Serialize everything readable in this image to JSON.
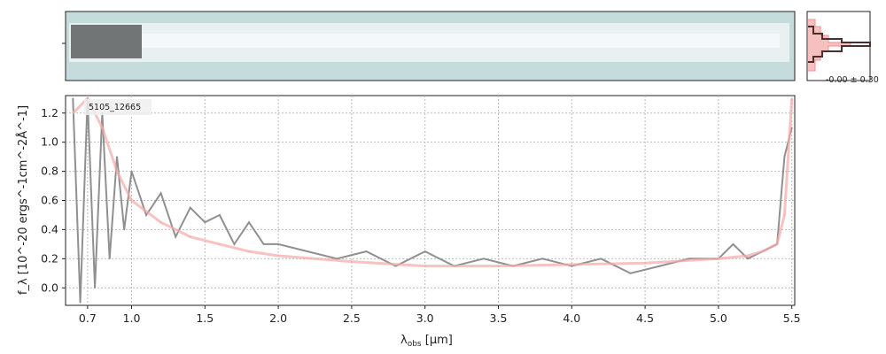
{
  "chart_data": {
    "type": "line",
    "object_id": "5105_12665",
    "xlabel_main": "λ",
    "xlabel_sub": "obs",
    "xlabel_unit": " [μm]",
    "ylabel_text": "f_λ [10^-20 ergs^-1cm^-2Å^-1]",
    "ylim": [
      -0.12,
      1.32
    ],
    "yticks": [
      "0.0",
      "0.2",
      "0.4",
      "0.6",
      "0.8",
      "1.0",
      "1.2"
    ],
    "xticks": [
      "0.7",
      "1.0",
      "1.5",
      "2.0",
      "2.5",
      "3.0",
      "3.5",
      "4.0",
      "4.5",
      "5.0",
      "5.5"
    ],
    "xlim": [
      0.55,
      5.52
    ],
    "grid": true,
    "series": [
      {
        "color": "#8a8a8a",
        "x": [
          0.6,
          0.65,
          0.7,
          0.75,
          0.8,
          0.85,
          0.9,
          0.95,
          1.0,
          1.1,
          1.2,
          1.3,
          1.4,
          1.5,
          1.6,
          1.7,
          1.8,
          1.9,
          2.0,
          2.2,
          2.4,
          2.6,
          2.8,
          3.0,
          3.2,
          3.4,
          3.6,
          3.8,
          4.0,
          4.2,
          4.4,
          4.6,
          4.8,
          5.0,
          5.1,
          5.2,
          5.3,
          5.4,
          5.45,
          5.5
        ],
        "y": [
          1.3,
          -0.1,
          1.3,
          0.0,
          1.2,
          0.2,
          0.9,
          0.4,
          0.8,
          0.5,
          0.65,
          0.35,
          0.55,
          0.45,
          0.5,
          0.3,
          0.45,
          0.3,
          0.3,
          0.25,
          0.2,
          0.25,
          0.15,
          0.25,
          0.15,
          0.2,
          0.15,
          0.2,
          0.15,
          0.2,
          0.1,
          0.15,
          0.2,
          0.2,
          0.3,
          0.2,
          0.25,
          0.3,
          0.9,
          1.1
        ]
      },
      {
        "color": "#f7a8a8",
        "x": [
          0.6,
          0.7,
          0.8,
          0.9,
          1.0,
          1.2,
          1.4,
          1.6,
          1.8,
          2.0,
          2.5,
          3.0,
          3.5,
          4.0,
          4.5,
          5.0,
          5.2,
          5.3,
          5.4,
          5.45,
          5.5
        ],
        "y": [
          1.2,
          1.3,
          1.1,
          0.8,
          0.6,
          0.45,
          0.35,
          0.3,
          0.25,
          0.22,
          0.18,
          0.15,
          0.15,
          0.16,
          0.17,
          0.2,
          0.22,
          0.25,
          0.3,
          0.5,
          1.3
        ]
      }
    ],
    "side_panel_label": "-0.00 ± 0.30"
  }
}
